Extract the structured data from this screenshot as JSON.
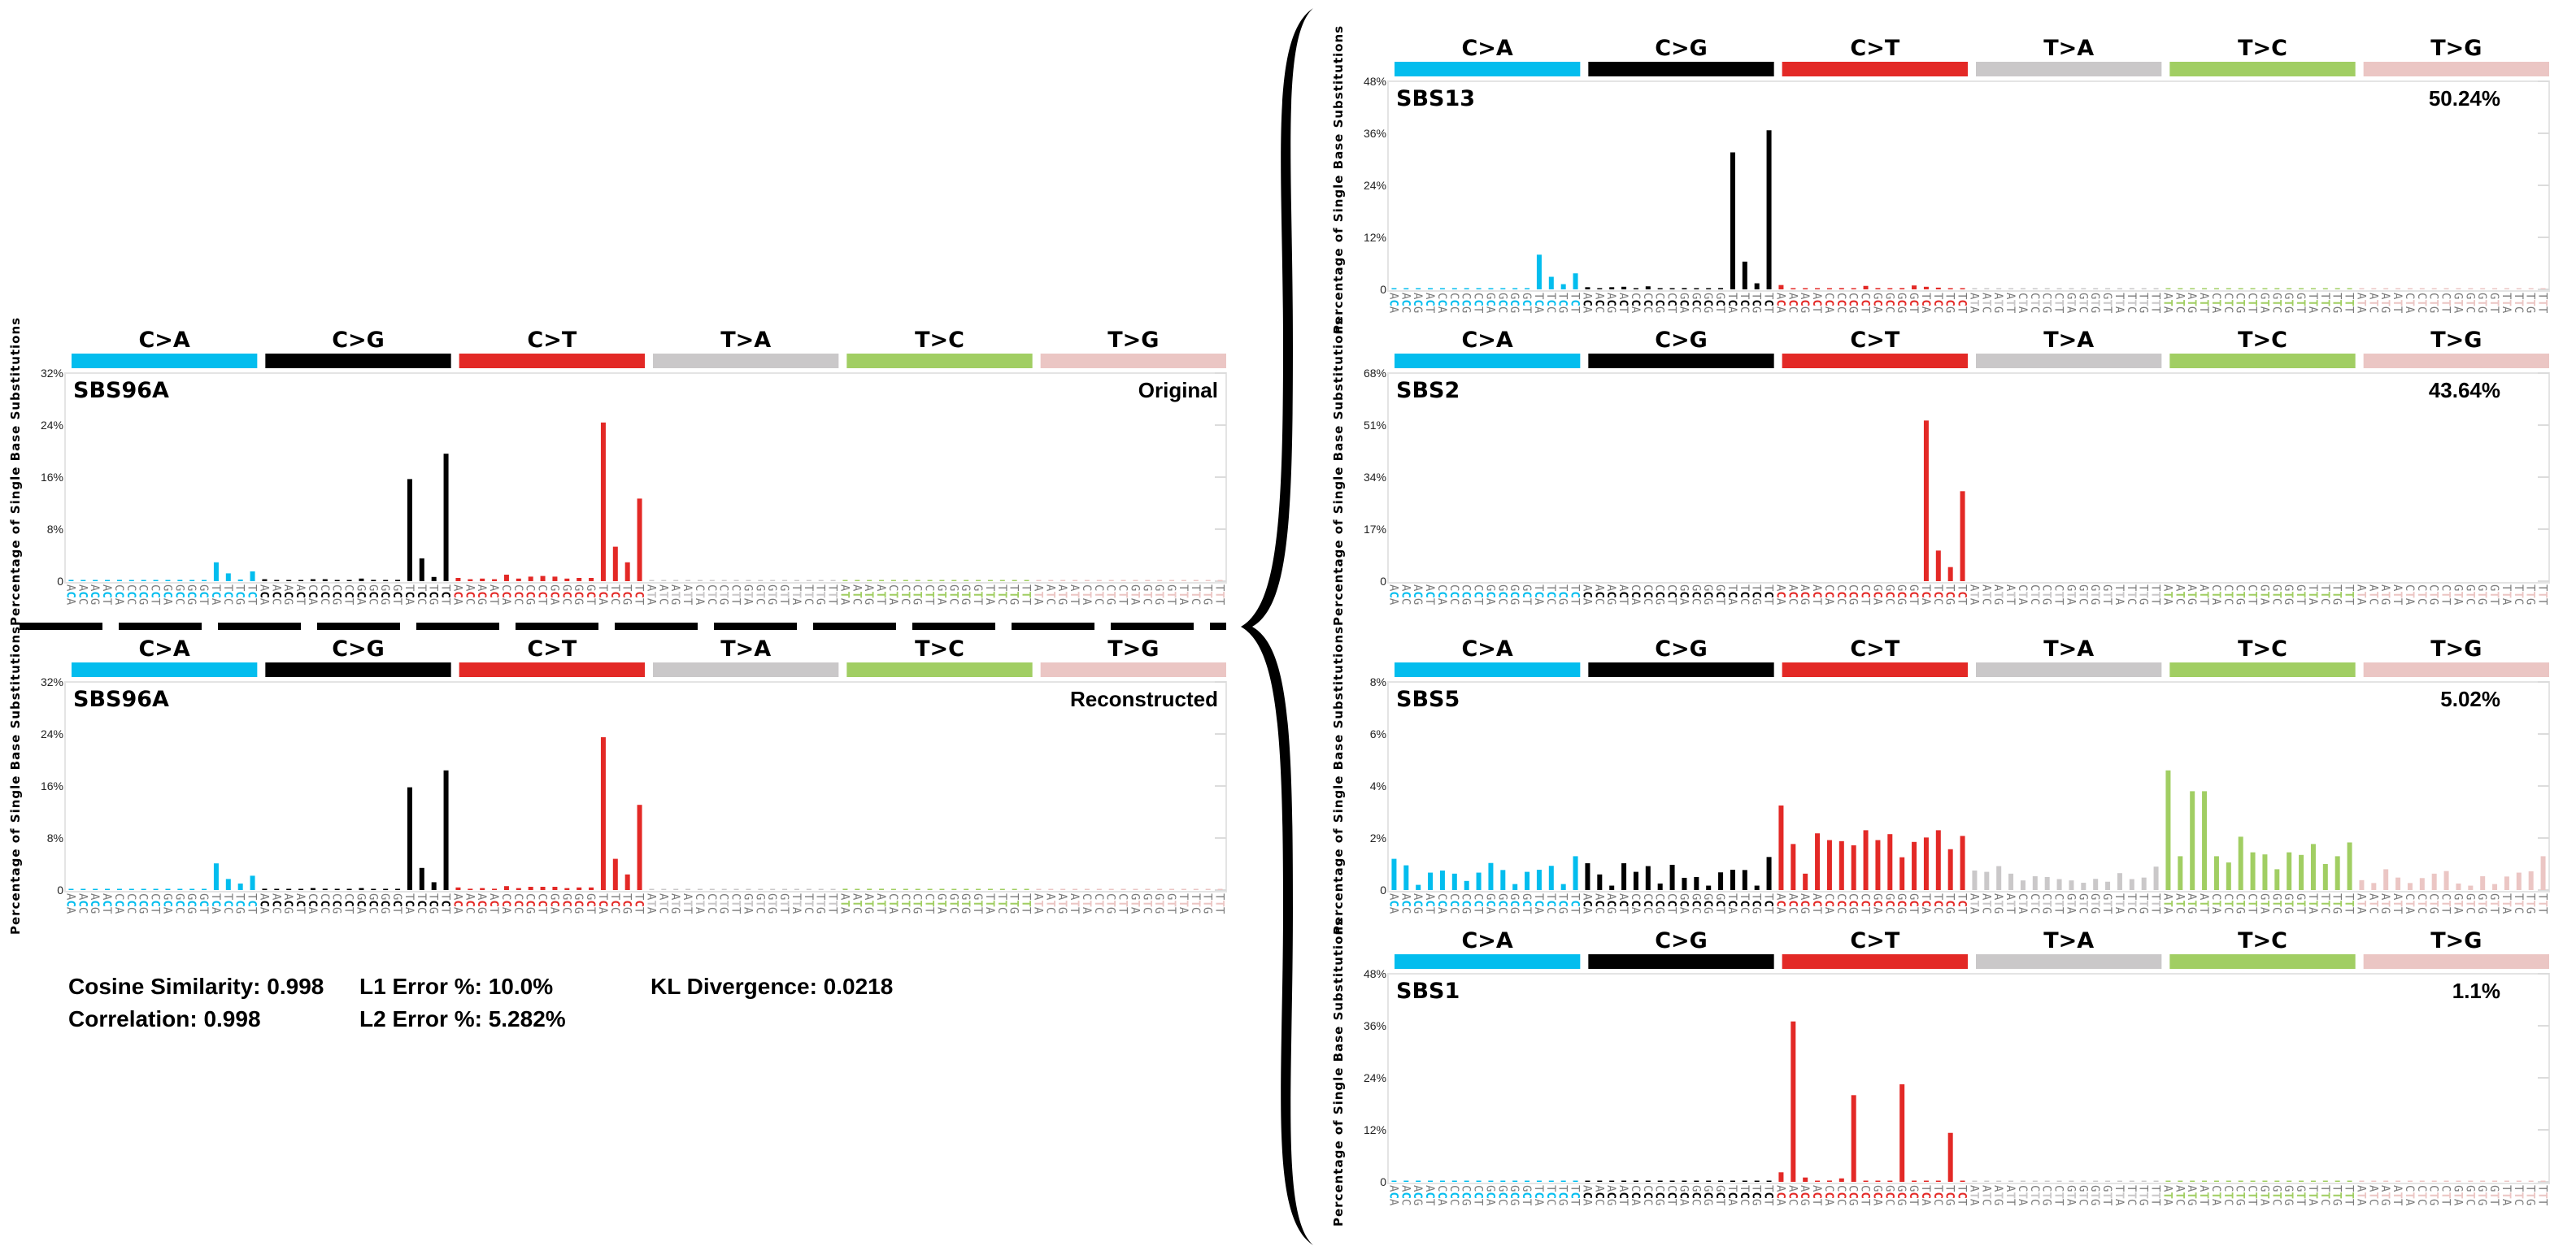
{
  "mutation_types": [
    "C>A",
    "C>G",
    "C>T",
    "T>A",
    "T>C",
    "T>G"
  ],
  "colors": {
    "C>A": "#03BDEE",
    "C>G": "#010101",
    "C>T": "#E32926",
    "T>A": "#CAC8C9",
    "T>C": "#A1CE63",
    "T>G": "#EBC6C4",
    "context_flank": "#7a7a7a"
  },
  "contexts_C": [
    "ACA",
    "ACC",
    "ACG",
    "ACT",
    "CCA",
    "CCC",
    "CCG",
    "CCT",
    "GCA",
    "GCC",
    "GCG",
    "GCT",
    "TCA",
    "TCC",
    "TCG",
    "TCT"
  ],
  "contexts_T": [
    "ATA",
    "ATC",
    "ATG",
    "ATT",
    "CTA",
    "CTC",
    "CTG",
    "CTT",
    "GTA",
    "GTC",
    "GTG",
    "GTT",
    "TTA",
    "TTC",
    "TTG",
    "TTT"
  ],
  "ylabel": "Percentage of Single Base Substitutions",
  "metrics": {
    "cosine": "Cosine Similarity: 0.998",
    "l1": "L1 Error %: 10.0%",
    "kl": "KL Divergence: 0.0218",
    "correlation": "Correlation: 0.998",
    "l2": "L2 Error %: 5.282%"
  },
  "chart_data": [
    {
      "type": "bar",
      "id": "original",
      "title": "SBS96A",
      "annotation": "Original",
      "ylim": [
        0,
        32
      ],
      "yticks": [
        "0",
        "8%",
        "16%",
        "24%",
        "32%"
      ],
      "values": [
        0.2,
        0.1,
        0.1,
        0.1,
        0.2,
        0.1,
        0.1,
        0.1,
        0.1,
        0.2,
        0.1,
        0.1,
        2.9,
        1.2,
        0.25,
        1.5,
        0.3,
        0.1,
        0.1,
        0.1,
        0.3,
        0.3,
        0.1,
        0.1,
        0.4,
        0.2,
        0.1,
        0.2,
        15.7,
        3.5,
        0.65,
        19.6,
        0.5,
        0.3,
        0.4,
        0.3,
        1.0,
        0.4,
        0.7,
        0.8,
        0.7,
        0.4,
        0.5,
        0.5,
        24.4,
        5.3,
        2.9,
        12.7,
        0.05,
        0.05,
        0.05,
        0.05,
        0.05,
        0.05,
        0.05,
        0.05,
        0.05,
        0.05,
        0.05,
        0.05,
        0.05,
        0.05,
        0.05,
        0.05,
        0.1,
        0.1,
        0.05,
        0.1,
        0.05,
        0.1,
        0.05,
        0.1,
        0.05,
        0.1,
        0.05,
        0.1,
        0.05,
        0.1,
        0.05,
        0.05,
        0.05,
        0.05,
        0.05,
        0.05,
        0.05,
        0.05,
        0.1,
        0.05,
        0.05,
        0.05,
        0.1,
        0.05,
        0.05,
        0.05,
        0.05,
        0.1
      ]
    },
    {
      "type": "bar",
      "id": "reconstructed",
      "title": "SBS96A",
      "annotation": "Reconstructed",
      "ylim": [
        0,
        32
      ],
      "yticks": [
        "0",
        "8%",
        "16%",
        "24%",
        "32%"
      ],
      "values": [
        0.1,
        0.1,
        0.05,
        0.1,
        0.1,
        0.05,
        0.05,
        0.05,
        0.1,
        0.05,
        0.05,
        0.05,
        4.1,
        1.7,
        1.0,
        2.2,
        0.2,
        0.1,
        0.1,
        0.1,
        0.3,
        0.2,
        0.1,
        0.1,
        0.3,
        0.1,
        0.1,
        0.1,
        15.8,
        3.4,
        1.2,
        18.4,
        0.4,
        0.2,
        0.3,
        0.2,
        0.6,
        0.3,
        0.5,
        0.5,
        0.5,
        0.3,
        0.4,
        0.4,
        23.5,
        4.8,
        2.4,
        13.1,
        0.05,
        0.05,
        0.05,
        0.05,
        0.05,
        0.05,
        0.05,
        0.05,
        0.05,
        0.05,
        0.05,
        0.05,
        0.05,
        0.05,
        0.05,
        0.05,
        0.2,
        0.1,
        0.2,
        0.2,
        0.1,
        0.05,
        0.1,
        0.1,
        0.05,
        0.05,
        0.1,
        0.05,
        0.1,
        0.05,
        0.05,
        0.1,
        0.05,
        0.05,
        0.05,
        0.05,
        0.05,
        0.05,
        0.05,
        0.05,
        0.05,
        0.05,
        0.05,
        0.05,
        0.05,
        0.05,
        0.05,
        0.05
      ]
    },
    {
      "type": "bar",
      "id": "sbs13",
      "title": "SBS13",
      "annotation": "50.24%",
      "ylim": [
        0,
        48
      ],
      "yticks": [
        "0",
        "12%",
        "24%",
        "36%",
        "48%"
      ],
      "values": [
        0.1,
        0.05,
        0.05,
        0.1,
        0.2,
        0.05,
        0.05,
        0.05,
        0.1,
        0.05,
        0.05,
        0.05,
        8.0,
        2.9,
        1.2,
        3.7,
        0.5,
        0.1,
        0.5,
        0.6,
        0.1,
        0.7,
        0.2,
        0.1,
        0.3,
        0.1,
        0.1,
        0.3,
        31.6,
        6.4,
        1.4,
        36.7,
        1.0,
        0.05,
        0.1,
        0.05,
        0.2,
        0.3,
        0.2,
        0.8,
        0.3,
        0.2,
        0.3,
        0.9,
        0.6,
        0.4,
        0.1,
        0.05,
        0.02,
        0.02,
        0.02,
        0.02,
        0.02,
        0.02,
        0.02,
        0.02,
        0.02,
        0.02,
        0.02,
        0.02,
        0.02,
        0.02,
        0.02,
        0.02,
        0.2,
        0.05,
        0.2,
        0.05,
        0.02,
        0.02,
        0.02,
        0.02,
        0.05,
        0.05,
        0.02,
        0.02,
        0.02,
        0.02,
        0.02,
        0.05,
        0.02,
        0.02,
        0.02,
        0.02,
        0.02,
        0.02,
        0.02,
        0.02,
        0.02,
        0.02,
        0.02,
        0.02,
        0.02,
        0.02,
        0.02,
        0.02
      ]
    },
    {
      "type": "bar",
      "id": "sbs2",
      "title": "SBS2",
      "annotation": "43.64%",
      "ylim": [
        0,
        68
      ],
      "yticks": [
        "0",
        "17%",
        "34%",
        "51%",
        "68%"
      ],
      "values": [
        0,
        0,
        0,
        0,
        0,
        0,
        0,
        0,
        0,
        0,
        0,
        0,
        0,
        0,
        0,
        0,
        0,
        0,
        0,
        0,
        0,
        0,
        0,
        0,
        0,
        0,
        0,
        0,
        0,
        0,
        0,
        0,
        0,
        0,
        0,
        0,
        0,
        0,
        0,
        0,
        0,
        0,
        0,
        0,
        52.5,
        10.0,
        4.6,
        29.4,
        0,
        0,
        0,
        0,
        0,
        0,
        0,
        0,
        0,
        0,
        0,
        0,
        0,
        0,
        0,
        0,
        0,
        0,
        0,
        0,
        0,
        0,
        0,
        0,
        0,
        0,
        0,
        0,
        0,
        0,
        0,
        0,
        0,
        0,
        0,
        0,
        0,
        0,
        0,
        0,
        0,
        0,
        0,
        0,
        0,
        0,
        0,
        0
      ]
    },
    {
      "type": "bar",
      "id": "sbs5",
      "title": "SBS5",
      "annotation": "5.02%",
      "ylim": [
        0,
        8
      ],
      "yticks": [
        "0",
        "2%",
        "4%",
        "6%",
        "8%"
      ],
      "values": [
        1.2,
        0.95,
        0.2,
        0.67,
        0.75,
        0.63,
        0.35,
        0.67,
        1.04,
        0.77,
        0.23,
        0.7,
        0.78,
        0.93,
        0.23,
        1.3,
        1.03,
        0.6,
        0.17,
        1.03,
        0.7,
        0.92,
        0.25,
        0.97,
        0.47,
        0.5,
        0.17,
        0.68,
        0.78,
        0.77,
        0.17,
        1.27,
        3.25,
        1.77,
        0.63,
        2.18,
        1.92,
        1.88,
        1.72,
        2.3,
        1.92,
        2.15,
        1.26,
        1.85,
        2.02,
        2.3,
        1.57,
        2.08,
        0.75,
        0.7,
        0.92,
        0.63,
        0.37,
        0.53,
        0.5,
        0.42,
        0.37,
        0.28,
        0.43,
        0.32,
        0.65,
        0.42,
        0.48,
        0.9,
        4.6,
        1.3,
        3.8,
        3.8,
        1.3,
        1.06,
        2.05,
        1.45,
        1.37,
        0.8,
        1.45,
        1.35,
        1.77,
        1.0,
        1.3,
        1.83,
        0.38,
        0.27,
        0.8,
        0.48,
        0.27,
        0.46,
        0.63,
        0.73,
        0.25,
        0.17,
        0.53,
        0.23,
        0.52,
        0.67,
        0.72,
        1.3
      ]
    },
    {
      "type": "bar",
      "id": "sbs1",
      "title": "SBS1",
      "annotation": "1.1%",
      "ylim": [
        0,
        48
      ],
      "yticks": [
        "0",
        "12%",
        "24%",
        "36%",
        "48%"
      ],
      "values": [
        0.02,
        0.02,
        0.02,
        0.02,
        0.02,
        0.02,
        0.02,
        0.02,
        0.02,
        0.02,
        0.02,
        0.02,
        0.02,
        0.02,
        0.02,
        0.02,
        0.02,
        0.02,
        0.02,
        0.02,
        0.02,
        0.02,
        0.02,
        0.02,
        0.02,
        0.02,
        0.02,
        0.02,
        0.02,
        0.02,
        0.02,
        0.02,
        2.2,
        37.0,
        1.0,
        0.1,
        0.3,
        0.8,
        20.0,
        0.2,
        0.2,
        0.1,
        22.5,
        0.1,
        0.1,
        0.1,
        11.3,
        0.1,
        0.02,
        0.02,
        0.02,
        0.02,
        0.02,
        0.02,
        0.02,
        0.02,
        0.02,
        0.02,
        0.02,
        0.02,
        0.02,
        0.02,
        0.02,
        0.02,
        0.02,
        0.02,
        0.02,
        0.02,
        0.02,
        0.02,
        0.02,
        0.02,
        0.02,
        0.02,
        0.02,
        0.02,
        0.02,
        0.02,
        0.02,
        0.02,
        0.02,
        0.02,
        0.02,
        0.02,
        0.02,
        0.02,
        0.02,
        0.02,
        0.02,
        0.02,
        0.02,
        0.02,
        0.02,
        0.02,
        0.02,
        0.02
      ]
    }
  ]
}
